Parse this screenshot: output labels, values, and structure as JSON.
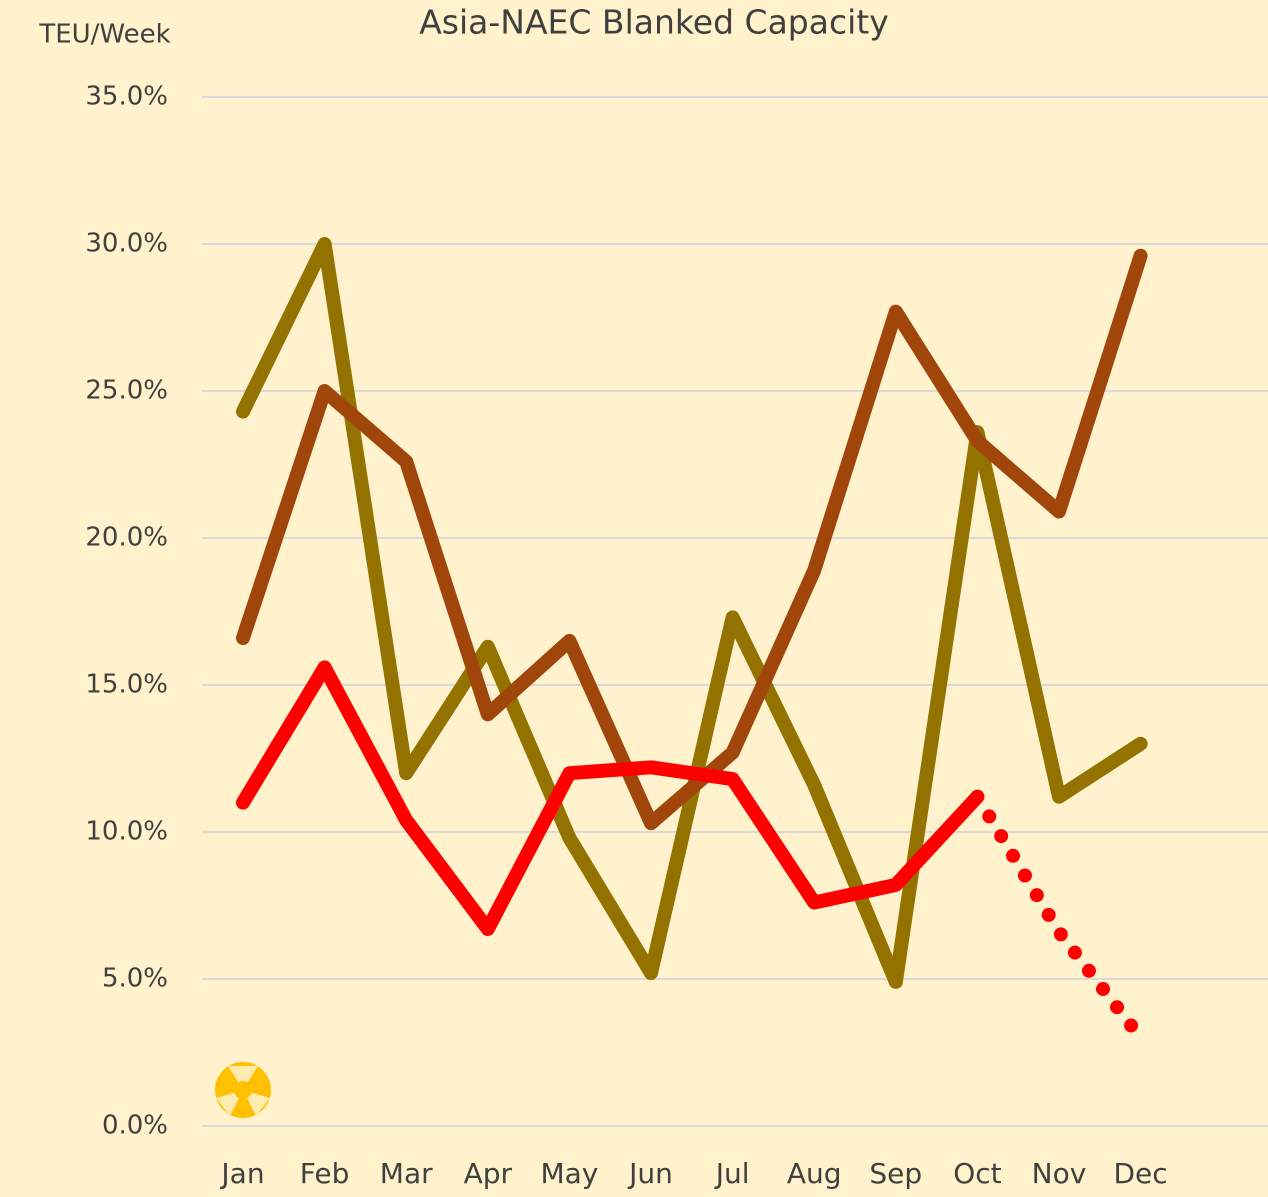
{
  "chart_data": {
    "type": "line",
    "title": "Asia-NAEC Blanked Capacity",
    "y_label": "TEU/Week",
    "categories": [
      "Jan",
      "Feb",
      "Mar",
      "Apr",
      "May",
      "Jun",
      "Jul",
      "Aug",
      "Sep",
      "Oct",
      "Nov",
      "Dec"
    ],
    "series": [
      {
        "color": "#937200",
        "values": [
          24.3,
          30.0,
          12.0,
          16.3,
          9.8,
          5.2,
          17.3,
          11.6,
          4.9,
          23.6,
          11.2,
          13.0
        ]
      },
      {
        "color": "#A0460A",
        "values": [
          16.6,
          25.0,
          22.6,
          14.0,
          16.5,
          10.3,
          12.7,
          18.9,
          27.7,
          23.3,
          20.9,
          29.6
        ]
      },
      {
        "color": "#FF0000",
        "values": [
          11.0,
          15.6,
          10.4,
          6.7,
          12.0,
          12.2,
          11.8,
          7.6,
          8.2,
          11.2,
          null,
          null
        ]
      },
      {
        "color": "#FF0000",
        "dash": "dotted",
        "values": [
          null,
          null,
          null,
          null,
          null,
          null,
          null,
          null,
          null,
          11.2,
          6.6,
          3.0
        ]
      }
    ],
    "ylim": [
      0,
      35
    ],
    "yticks": [
      {
        "value": 0,
        "label": "0.0%"
      },
      {
        "value": 5,
        "label": "5.0%"
      },
      {
        "value": 10,
        "label": "10.0%"
      },
      {
        "value": 15,
        "label": "15.0%"
      },
      {
        "value": 20,
        "label": "20.0%"
      },
      {
        "value": 25,
        "label": "25.0%"
      },
      {
        "value": 30,
        "label": "30.0%"
      },
      {
        "value": 35,
        "label": "35.0%"
      }
    ],
    "grid": true
  }
}
